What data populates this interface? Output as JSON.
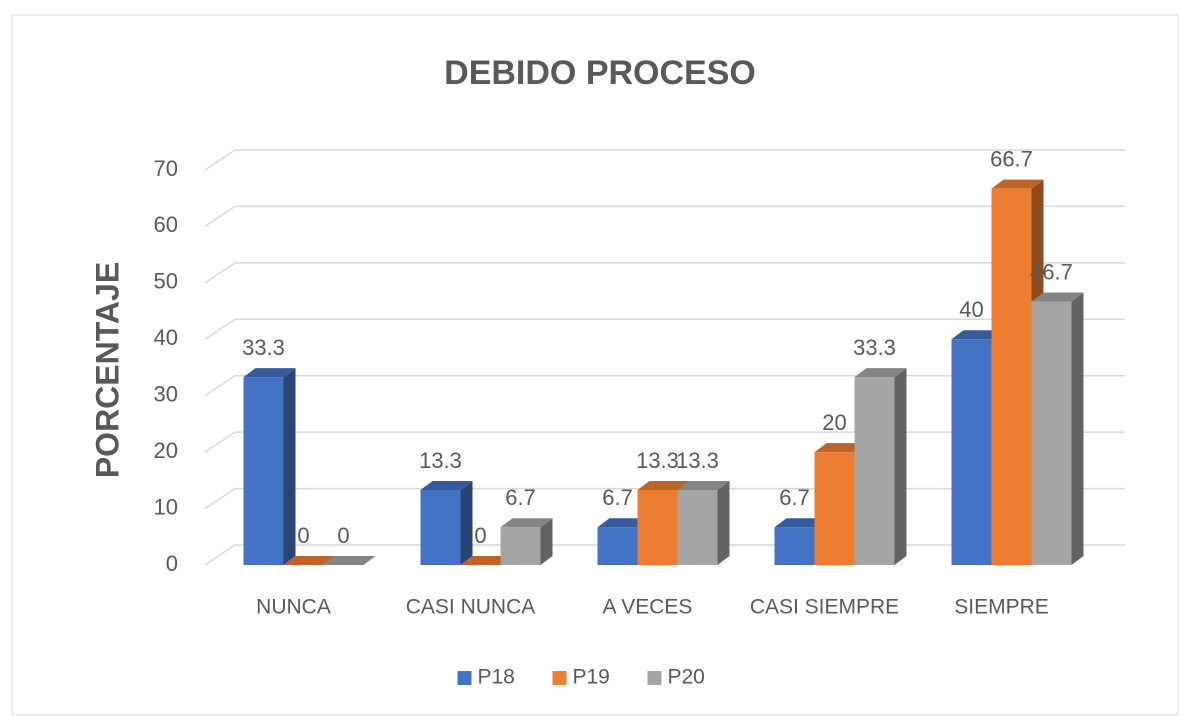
{
  "chart_data": {
    "type": "bar3d",
    "title": "DEBIDO PROCESO",
    "y_label": "PORCENTAJE",
    "categories": [
      "NUNCA",
      "CASI NUNCA",
      "A VECES",
      "CASI SIEMPRE",
      "SIEMPRE"
    ],
    "series": [
      {
        "name": "P18",
        "color": "#4472c4",
        "values": [
          33.3,
          13.3,
          6.7,
          6.7,
          40
        ]
      },
      {
        "name": "P19",
        "color": "#ed7d31",
        "values": [
          0,
          0,
          13.3,
          20,
          66.7
        ]
      },
      {
        "name": "P20",
        "color": "#a5a5a5",
        "values": [
          0,
          6.7,
          13.3,
          33.3,
          46.7
        ]
      }
    ],
    "ylim": [
      0,
      70
    ],
    "yticks": [
      0,
      10,
      20,
      30,
      40,
      50,
      60,
      70
    ],
    "grid": true,
    "legend": "bottom"
  }
}
